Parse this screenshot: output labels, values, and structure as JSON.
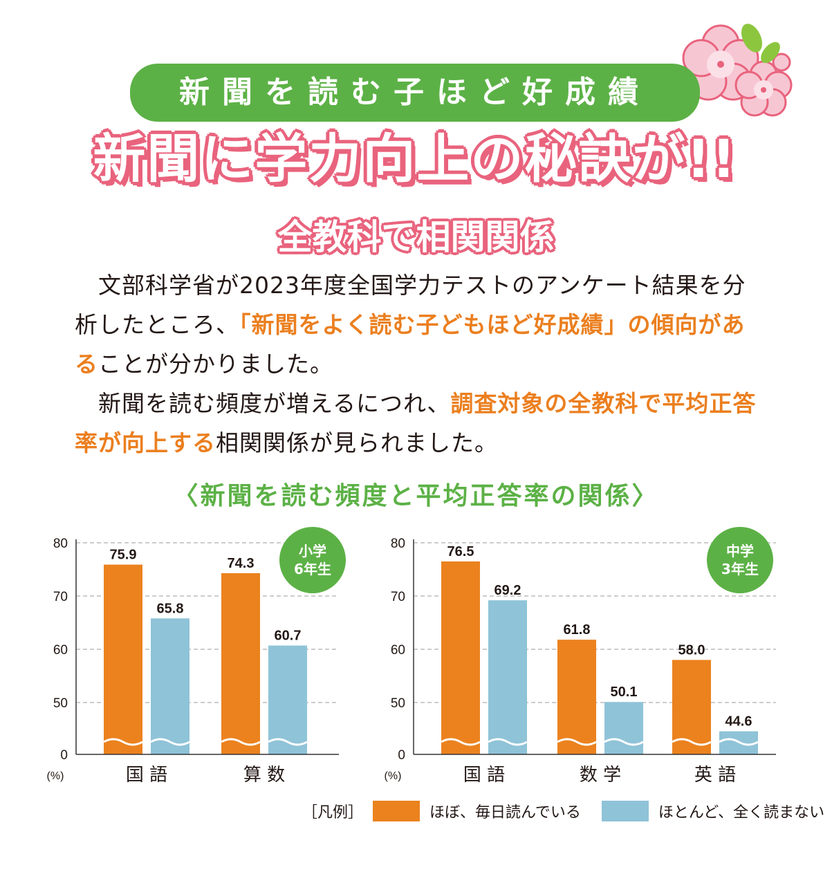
{
  "header": {
    "tagline": "新聞を読む子ほど好成績",
    "title": "新聞に学力向上の秘訣が!!",
    "subtitle": "全教科で相関関係"
  },
  "body": {
    "p1_a": "文部科学省が2023年度全国学力テストのアンケート結果を分析したところ、",
    "p1_hl": "「新聞をよく読む子どもほど好成績」の傾向がある",
    "p1_b": "ことが分かりました。",
    "p2_a": "新聞を読む頻度が増えるにつれ、",
    "p2_hl": "調査対象の全教科で平均正答率が向上する",
    "p2_b": "相関関係が見られました。"
  },
  "chart_section_title": "〈新聞を読む頻度と平均正答率の関係〉",
  "colors": {
    "orange": "#eb821e",
    "blue": "#8fc3d8",
    "green": "#5cb146",
    "pink": "#e9637d"
  },
  "chart_data": [
    {
      "type": "bar",
      "badge": [
        "小学",
        "6年生"
      ],
      "categories": [
        "国 語",
        "算 数"
      ],
      "series": [
        {
          "name": "ほぼ、毎日読んでいる",
          "values": [
            75.9,
            74.3
          ]
        },
        {
          "name": "ほとんど、全く読まない",
          "values": [
            65.8,
            60.7
          ]
        }
      ],
      "yticks": [
        "80",
        "70",
        "60",
        "50",
        "0"
      ],
      "yunit": "(%)",
      "ylim": [
        40,
        80
      ],
      "axis_break": true
    },
    {
      "type": "bar",
      "badge": [
        "中学",
        "3年生"
      ],
      "categories": [
        "国 語",
        "数 学",
        "英 語"
      ],
      "series": [
        {
          "name": "ほぼ、毎日読んでいる",
          "values": [
            76.5,
            61.8,
            58.0
          ]
        },
        {
          "name": "ほとんど、全く読まない",
          "values": [
            69.2,
            50.1,
            44.6
          ]
        }
      ],
      "yticks": [
        "80",
        "70",
        "60",
        "50",
        "0"
      ],
      "yunit": "(%)",
      "ylim": [
        40,
        80
      ],
      "axis_break": true
    }
  ],
  "legend": {
    "label": "［凡例］",
    "items": [
      "ほぼ、毎日読んでいる",
      "ほとんど、全く読まない"
    ]
  }
}
